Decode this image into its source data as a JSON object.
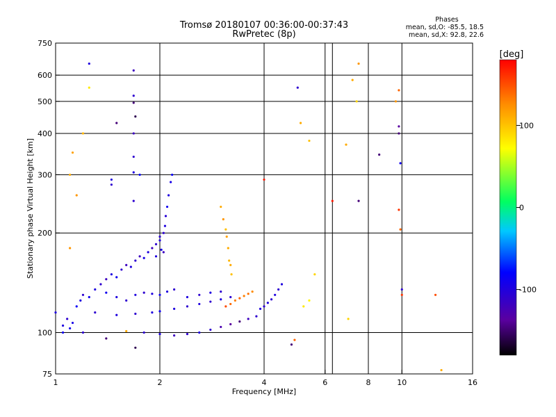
{
  "chart_data": {
    "type": "scatter",
    "title": "Tromsø 20180107 00:36:00-00:37:43",
    "subtitle": "RwPretec (8p)",
    "xlabel": "Frequency [MHz]",
    "ylabel": "Stationary phase Virtual Height [km]",
    "x_scale": "log",
    "y_scale": "log",
    "xlim": [
      1,
      16
    ],
    "ylim": [
      75,
      750
    ],
    "x_ticks": [
      1,
      2,
      4,
      6,
      8,
      10,
      16
    ],
    "x_gridlines": [
      2,
      4,
      6,
      6.3,
      8,
      10
    ],
    "y_ticks": [
      75,
      100,
      200,
      300,
      400,
      500,
      600,
      750
    ],
    "colorbar": {
      "label": "[deg]",
      "ticks": [
        100,
        0,
        -100
      ],
      "range": [
        -180,
        180
      ]
    },
    "phases": {
      "heading": "Phases",
      "line_o": "mean, sd,O: -85.5, 18.5",
      "line_x": "mean, sd,X:  92.8, 22.6"
    },
    "series": [
      {
        "points": [
          [
            1.05,
            105,
            -100
          ],
          [
            1.08,
            110,
            -110
          ],
          [
            1.1,
            103,
            -90
          ],
          [
            1.12,
            107,
            -95
          ],
          [
            1.15,
            120,
            -85
          ],
          [
            1.18,
            125,
            -100
          ],
          [
            1.2,
            130,
            -110
          ],
          [
            1.25,
            128,
            -90
          ],
          [
            1.3,
            135,
            -100
          ],
          [
            1.35,
            140,
            -110
          ],
          [
            1.4,
            145,
            -120
          ],
          [
            1.45,
            150,
            -100
          ],
          [
            1.5,
            147,
            -90
          ],
          [
            1.55,
            155,
            -110
          ],
          [
            1.6,
            160,
            -120
          ],
          [
            1.65,
            158,
            -100
          ],
          [
            1.7,
            165,
            -110
          ],
          [
            1.75,
            170,
            -120
          ],
          [
            1.8,
            168,
            -95
          ],
          [
            1.85,
            175,
            -100
          ],
          [
            1.9,
            180,
            -120
          ],
          [
            1.95,
            185,
            -110
          ],
          [
            2.0,
            190,
            -100
          ],
          [
            2.02,
            178,
            -95
          ],
          [
            2.05,
            200,
            -110
          ],
          [
            2.07,
            210,
            -100
          ],
          [
            2.08,
            225,
            -105
          ],
          [
            2.1,
            240,
            -90
          ],
          [
            2.12,
            260,
            -100
          ],
          [
            2.15,
            285,
            -95
          ],
          [
            2.17,
            300,
            -85
          ],
          [
            2.05,
            175,
            -120
          ],
          [
            2.0,
            195,
            -110
          ],
          [
            1.95,
            170,
            -100
          ]
        ]
      },
      {
        "points": [
          [
            1.4,
            132,
            -90
          ],
          [
            1.5,
            128,
            -100
          ],
          [
            1.6,
            125,
            -110
          ],
          [
            1.7,
            130,
            -100
          ],
          [
            1.8,
            132,
            -110
          ],
          [
            1.9,
            131,
            -100
          ],
          [
            2.0,
            130,
            -90
          ],
          [
            2.1,
            133,
            -100
          ],
          [
            2.2,
            135,
            -110
          ],
          [
            2.4,
            128,
            -100
          ],
          [
            2.6,
            130,
            -110
          ],
          [
            2.8,
            132,
            -100
          ],
          [
            3.0,
            133,
            -110
          ]
        ]
      },
      {
        "points": [
          [
            1.3,
            115,
            -110
          ],
          [
            1.5,
            113,
            -100
          ],
          [
            1.7,
            114,
            -110
          ],
          [
            1.9,
            115,
            -100
          ],
          [
            2.0,
            116,
            -90
          ],
          [
            2.2,
            118,
            -100
          ],
          [
            2.4,
            120,
            -110
          ],
          [
            2.6,
            122,
            -100
          ],
          [
            2.8,
            124,
            -110
          ],
          [
            3.0,
            126,
            -100
          ],
          [
            3.2,
            128,
            -110
          ]
        ]
      },
      {
        "points": [
          [
            1.8,
            100,
            -110
          ],
          [
            2.0,
            99,
            -100
          ],
          [
            2.2,
            98,
            -120
          ],
          [
            2.4,
            99,
            -110
          ],
          [
            2.6,
            100,
            -100
          ],
          [
            2.8,
            102,
            -110
          ],
          [
            3.0,
            104,
            -130
          ],
          [
            3.2,
            106,
            -140
          ],
          [
            3.4,
            108,
            -150
          ],
          [
            3.6,
            110,
            -120
          ],
          [
            3.8,
            112,
            -110
          ]
        ]
      },
      {
        "points": [
          [
            3.9,
            118,
            -100
          ],
          [
            4.0,
            120,
            -110
          ],
          [
            4.1,
            123,
            -100
          ],
          [
            4.2,
            126,
            -110
          ],
          [
            4.3,
            130,
            -100
          ],
          [
            4.4,
            135,
            -110
          ],
          [
            4.5,
            140,
            -100
          ]
        ]
      },
      {
        "points": [
          [
            3.0,
            240,
            110
          ],
          [
            3.05,
            220,
            120
          ],
          [
            3.1,
            205,
            100
          ],
          [
            3.12,
            195,
            115
          ],
          [
            3.15,
            180,
            110
          ],
          [
            3.17,
            165,
            105
          ],
          [
            3.2,
            160,
            110
          ],
          [
            3.22,
            150,
            100
          ]
        ]
      },
      {
        "points": [
          [
            3.1,
            120,
            150
          ],
          [
            3.2,
            122,
            140
          ],
          [
            3.3,
            125,
            130
          ],
          [
            3.4,
            127,
            140
          ],
          [
            3.5,
            129,
            130
          ],
          [
            3.6,
            131,
            135
          ],
          [
            3.7,
            133,
            125
          ]
        ]
      },
      {
        "points": [
          [
            5.2,
            120,
            80
          ],
          [
            5.4,
            125,
            75
          ],
          [
            5.6,
            150,
            90
          ],
          [
            7.0,
            110,
            90
          ]
        ]
      },
      {
        "points": [
          [
            1.1,
            300,
            110
          ],
          [
            1.12,
            350,
            115
          ],
          [
            1.15,
            260,
            120
          ],
          [
            1.2,
            400,
            105
          ],
          [
            1.25,
            550,
            80
          ],
          [
            1.1,
            180,
            120
          ]
        ]
      },
      {
        "points": [
          [
            1.45,
            280,
            -110
          ],
          [
            1.45,
            290,
            -100
          ],
          [
            1.68,
            620,
            -120
          ],
          [
            1.68,
            520,
            -110
          ],
          [
            1.68,
            400,
            -120
          ],
          [
            1.68,
            340,
            -110
          ],
          [
            1.68,
            305,
            -100
          ],
          [
            1.68,
            250,
            -110
          ]
        ]
      },
      {
        "points": [
          [
            1.25,
            650,
            -100
          ],
          [
            1.5,
            430,
            -150
          ],
          [
            1.7,
            450,
            -160
          ],
          [
            1.68,
            495,
            -150
          ],
          [
            1.75,
            300,
            -80
          ]
        ]
      },
      {
        "points": [
          [
            5.0,
            550,
            -110
          ],
          [
            5.1,
            430,
            110
          ],
          [
            5.4,
            380,
            100
          ],
          [
            6.9,
            370,
            110
          ],
          [
            7.2,
            580,
            110
          ],
          [
            7.4,
            500,
            90
          ],
          [
            7.5,
            650,
            120
          ],
          [
            9.6,
            500,
            120
          ],
          [
            9.8,
            540,
            140
          ],
          [
            9.8,
            420,
            -140
          ],
          [
            9.8,
            400,
            -150
          ],
          [
            9.9,
            325,
            -90
          ],
          [
            9.8,
            235,
            160
          ],
          [
            9.9,
            205,
            140
          ],
          [
            8.6,
            345,
            -150
          ],
          [
            7.5,
            250,
            -150
          ],
          [
            6.3,
            250,
            170
          ],
          [
            4.0,
            290,
            170
          ]
        ]
      },
      {
        "points": [
          [
            10,
            135,
            -110
          ],
          [
            10,
            130,
            160
          ],
          [
            12.5,
            130,
            150
          ],
          [
            13,
            77,
            110
          ],
          [
            4.8,
            92,
            -150
          ],
          [
            4.9,
            95,
            140
          ],
          [
            1.7,
            90,
            -160
          ],
          [
            1.4,
            96,
            -150
          ],
          [
            1.6,
            101,
            110
          ],
          [
            1.2,
            100,
            -110
          ],
          [
            1.0,
            115,
            -100
          ],
          [
            1.05,
            100,
            -90
          ]
        ]
      }
    ]
  }
}
